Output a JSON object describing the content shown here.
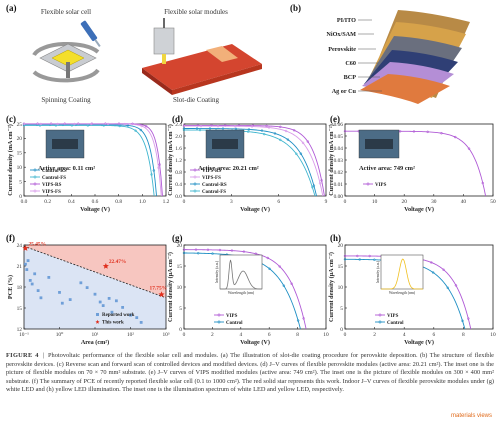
{
  "panels": {
    "a": {
      "letter": "(a)",
      "left_title": "Flexible solar cell",
      "right_title": "Flexible solar modules",
      "left_caption": "Spinning Coating",
      "right_caption": "Slot-die Coating"
    },
    "b": {
      "letter": "(b)",
      "layers": [
        "PI/ITO",
        "NiOx/SAM",
        "Perovskite",
        "C60",
        "BCP",
        "Ag or Cu"
      ]
    }
  },
  "chart_data": [
    {
      "id": "c",
      "letter": "(c)",
      "type": "line",
      "xlabel": "Voltage (V)",
      "ylabel": "Current density (mA cm⁻²)",
      "xlim": [
        0.0,
        1.2
      ],
      "ylim": [
        0,
        25
      ],
      "xticks": [
        "0.0",
        "0.2",
        "0.4",
        "0.6",
        "0.8",
        "1.0",
        "1.2"
      ],
      "yticks": [
        "0",
        "5",
        "10",
        "15",
        "20",
        "25"
      ],
      "annotation": "Active area: 0.11 cm²",
      "series": [
        {
          "name": "Control-RS",
          "color": "#1f8fc4",
          "jsc": 24.7,
          "voc": 1.12,
          "n": 0.045
        },
        {
          "name": "Control-FS",
          "color": "#3fb6cf",
          "jsc": 24.5,
          "voc": 1.1,
          "n": 0.055
        },
        {
          "name": "VIPS-RS",
          "color": "#b05ad6",
          "jsc": 25.1,
          "voc": 1.17,
          "n": 0.035
        },
        {
          "name": "VIPS-FS",
          "color": "#d99bea",
          "jsc": 25.0,
          "voc": 1.16,
          "n": 0.04
        }
      ]
    },
    {
      "id": "d",
      "letter": "(d)",
      "type": "line",
      "xlabel": "Voltage (V)",
      "ylabel": "Current density (mA cm⁻²)",
      "xlim": [
        0,
        9
      ],
      "ylim": [
        0.0,
        2.4
      ],
      "xticks": [
        "0",
        "3",
        "6",
        "9"
      ],
      "yticks": [
        "0.0",
        "0.4",
        "0.8",
        "1.2",
        "1.6",
        "2.0",
        "2.4"
      ],
      "annotation": "Active area: 20.21 cm²",
      "series": [
        {
          "name": "VIPS-RS",
          "color": "#b05ad6",
          "jsc": 2.35,
          "voc": 8.9,
          "n": 0.08
        },
        {
          "name": "VIPS-FS",
          "color": "#d99bea",
          "jsc": 2.33,
          "voc": 8.8,
          "n": 0.1
        },
        {
          "name": "Control-RS",
          "color": "#1f8fc4",
          "jsc": 2.25,
          "voc": 8.4,
          "n": 0.12
        },
        {
          "name": "Control-FS",
          "color": "#3fb6cf",
          "jsc": 2.2,
          "voc": 8.3,
          "n": 0.14
        }
      ]
    },
    {
      "id": "e",
      "letter": "(e)",
      "type": "line",
      "xlabel": "Voltage (V)",
      "ylabel": "Current density (mA cm⁻²)",
      "xlim": [
        0,
        50
      ],
      "ylim": [
        0.0,
        0.06
      ],
      "xticks": [
        "0",
        "10",
        "20",
        "30",
        "40",
        "50"
      ],
      "yticks": [
        "0.00",
        "0.01",
        "0.02",
        "0.03",
        "0.04",
        "0.05",
        "0.06"
      ],
      "annotation": "Active area: 749 cm²",
      "series": [
        {
          "name": "VIPS",
          "color": "#b05ad6",
          "jsc": 0.054,
          "voc": 47.5,
          "n": 0.09
        }
      ]
    },
    {
      "id": "f",
      "letter": "(f)",
      "type": "scatter",
      "xlabel": "Area (cm²)",
      "ylabel": "PCE (%)",
      "xscale": "log",
      "xlim": [
        0.1,
        1000
      ],
      "ylim": [
        12,
        26
      ],
      "xticks": [
        "10⁻¹",
        "10⁰",
        "10¹",
        "10²",
        "10³"
      ],
      "yticks": [
        "12",
        "15",
        "18",
        "21",
        "24"
      ],
      "labels": [
        "25.45%",
        "22.47%",
        "17.75%"
      ],
      "legend": [
        "Reported work",
        "This work"
      ],
      "reported": [
        [
          0.11,
          22.8
        ],
        [
          0.12,
          21.9
        ],
        [
          0.13,
          23.4
        ],
        [
          0.15,
          20.1
        ],
        [
          0.17,
          19.5
        ],
        [
          0.2,
          21.2
        ],
        [
          0.25,
          18.4
        ],
        [
          0.3,
          17.2
        ],
        [
          0.5,
          20.6
        ],
        [
          1.0,
          18.1
        ],
        [
          1.2,
          16.3
        ],
        [
          2.0,
          16.9
        ],
        [
          4.0,
          19.7
        ],
        [
          6.0,
          18.9
        ],
        [
          10,
          17.8
        ],
        [
          14,
          16.5
        ],
        [
          17,
          15.9
        ],
        [
          25,
          17.1
        ],
        [
          30,
          14.8
        ],
        [
          40,
          16.7
        ],
        [
          60,
          15.6
        ],
        [
          100,
          14.3
        ],
        [
          150,
          13.9
        ],
        [
          200,
          13.1
        ]
      ],
      "this_work": [
        [
          0.11,
          25.45
        ],
        [
          20.21,
          22.47
        ],
        [
          749,
          17.75
        ]
      ]
    },
    {
      "id": "g",
      "letter": "(g)",
      "type": "line",
      "xlabel": "Voltage (V)",
      "ylabel": "Current density (μA cm⁻²)",
      "xlim": [
        0,
        10
      ],
      "ylim": [
        0,
        20
      ],
      "xticks": [
        "0",
        "2",
        "4",
        "6",
        "8",
        "10"
      ],
      "yticks": [
        "0",
        "5",
        "10",
        "15",
        "20"
      ],
      "inset_xlabel": "Wavelength (nm)",
      "inset_ylabel": "Intensity (a.u.)",
      "series": [
        {
          "name": "VIPS",
          "color": "#b05ad6",
          "jsc": 18.9,
          "voc": 8.6,
          "n": 0.14
        },
        {
          "name": "Control",
          "color": "#1f8fc4",
          "jsc": 18.1,
          "voc": 8.2,
          "n": 0.17
        }
      ]
    },
    {
      "id": "h",
      "letter": "(h)",
      "type": "line",
      "xlabel": "Voltage (V)",
      "ylabel": "Current density (μA cm⁻²)",
      "xlim": [
        0,
        10
      ],
      "ylim": [
        0,
        20
      ],
      "xticks": [
        "0",
        "2",
        "4",
        "6",
        "8",
        "10"
      ],
      "yticks": [
        "0",
        "5",
        "10",
        "15",
        "20"
      ],
      "inset_xlabel": "Wavelength (nm)",
      "inset_ylabel": "Intensity (a.u.)",
      "series": [
        {
          "name": "VIPS",
          "color": "#b05ad6",
          "jsc": 17.4,
          "voc": 8.5,
          "n": 0.13
        },
        {
          "name": "Control",
          "color": "#1f8fc4",
          "jsc": 16.6,
          "voc": 8.1,
          "n": 0.16
        }
      ]
    }
  ],
  "caption": {
    "label": "FIGURE 4",
    "separator": "|",
    "text": "Photovoltaic performance of the flexible solar cell and modules. (a) The illustration of slot-die coating procedure for perovskite deposition. (b) The structure of flexible perovskite devices. (c) Reverse scan and forward scan of controlled devices and modified devices. (d) J–V curves of flexible perovskite modules (active area: 20.21 cm²). The inset one is the picture of flexible modules on 70 × 70 mm² substrate. (e) J–V curves of VIPS modified modules (active area: 749 cm²). The inset one is the picture of flexible modules on 300 × 400 mm² substrate. (f) The summary of PCE of recently reported flexible solar cell (0.1 to 1000 cm²). The red solid star represents this work. Indoor J–V curves of flexible perovskite modules under (g) white LED and (h) yellow LED illumination. The inset one is the illumination spectrum of white LED and yellow LED, respectively."
  },
  "watermark": "materials views",
  "colors": {
    "vips": "#b05ad6",
    "control": "#1f8fc4",
    "star": "#e0301e",
    "reported": "#6f9fd8",
    "region": "#f7c6c0",
    "region_blue": "#dbe4f4"
  }
}
